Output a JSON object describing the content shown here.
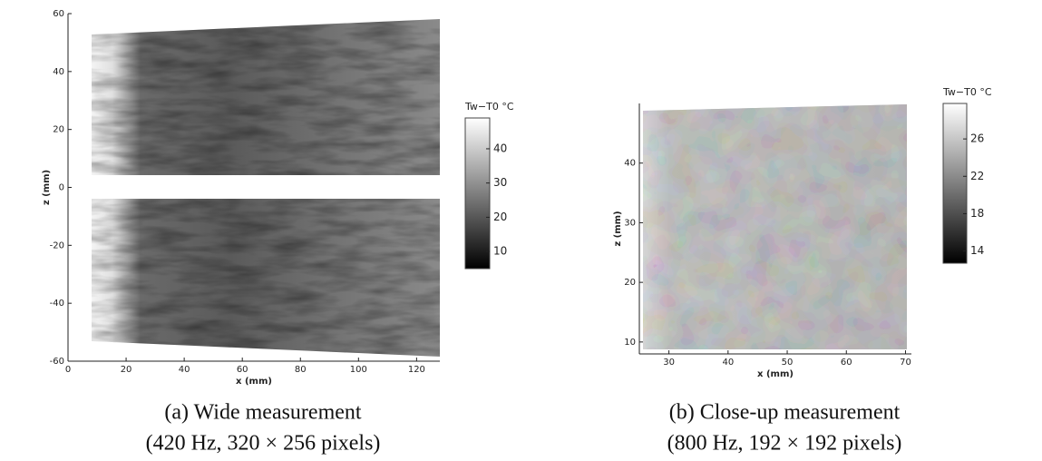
{
  "chart_data": [
    {
      "type": "heatmap",
      "xlabel": "x (mm)",
      "ylabel": "z (mm)",
      "xlim": [
        0,
        128
      ],
      "ylim": [
        -60,
        60
      ],
      "xticks": [
        0,
        20,
        40,
        60,
        80,
        100,
        120
      ],
      "yticks": [
        -60,
        -40,
        -20,
        0,
        20,
        40,
        60
      ],
      "colorbar": {
        "title": "Tw−T0 °C",
        "lim": [
          5,
          49
        ],
        "ticks": [
          10,
          20,
          30,
          40
        ]
      },
      "caption": [
        "(a) Wide measurement",
        "(420 Hz, 320 × 256 pixels)"
      ]
    },
    {
      "type": "heatmap",
      "xlabel": "x (mm)",
      "ylabel": "z (mm)",
      "xlim": [
        25,
        71
      ],
      "ylim": [
        8,
        50
      ],
      "xticks": [
        30,
        40,
        50,
        60,
        70
      ],
      "yticks": [
        10,
        20,
        30,
        40
      ],
      "colorbar": {
        "title": "Tw−T0 °C",
        "lim": [
          12.7,
          29.8
        ],
        "ticks": [
          14,
          18,
          22,
          26
        ]
      },
      "caption": [
        "(b) Close-up measurement",
        "(800 Hz, 192 × 192 pixels)"
      ]
    }
  ]
}
